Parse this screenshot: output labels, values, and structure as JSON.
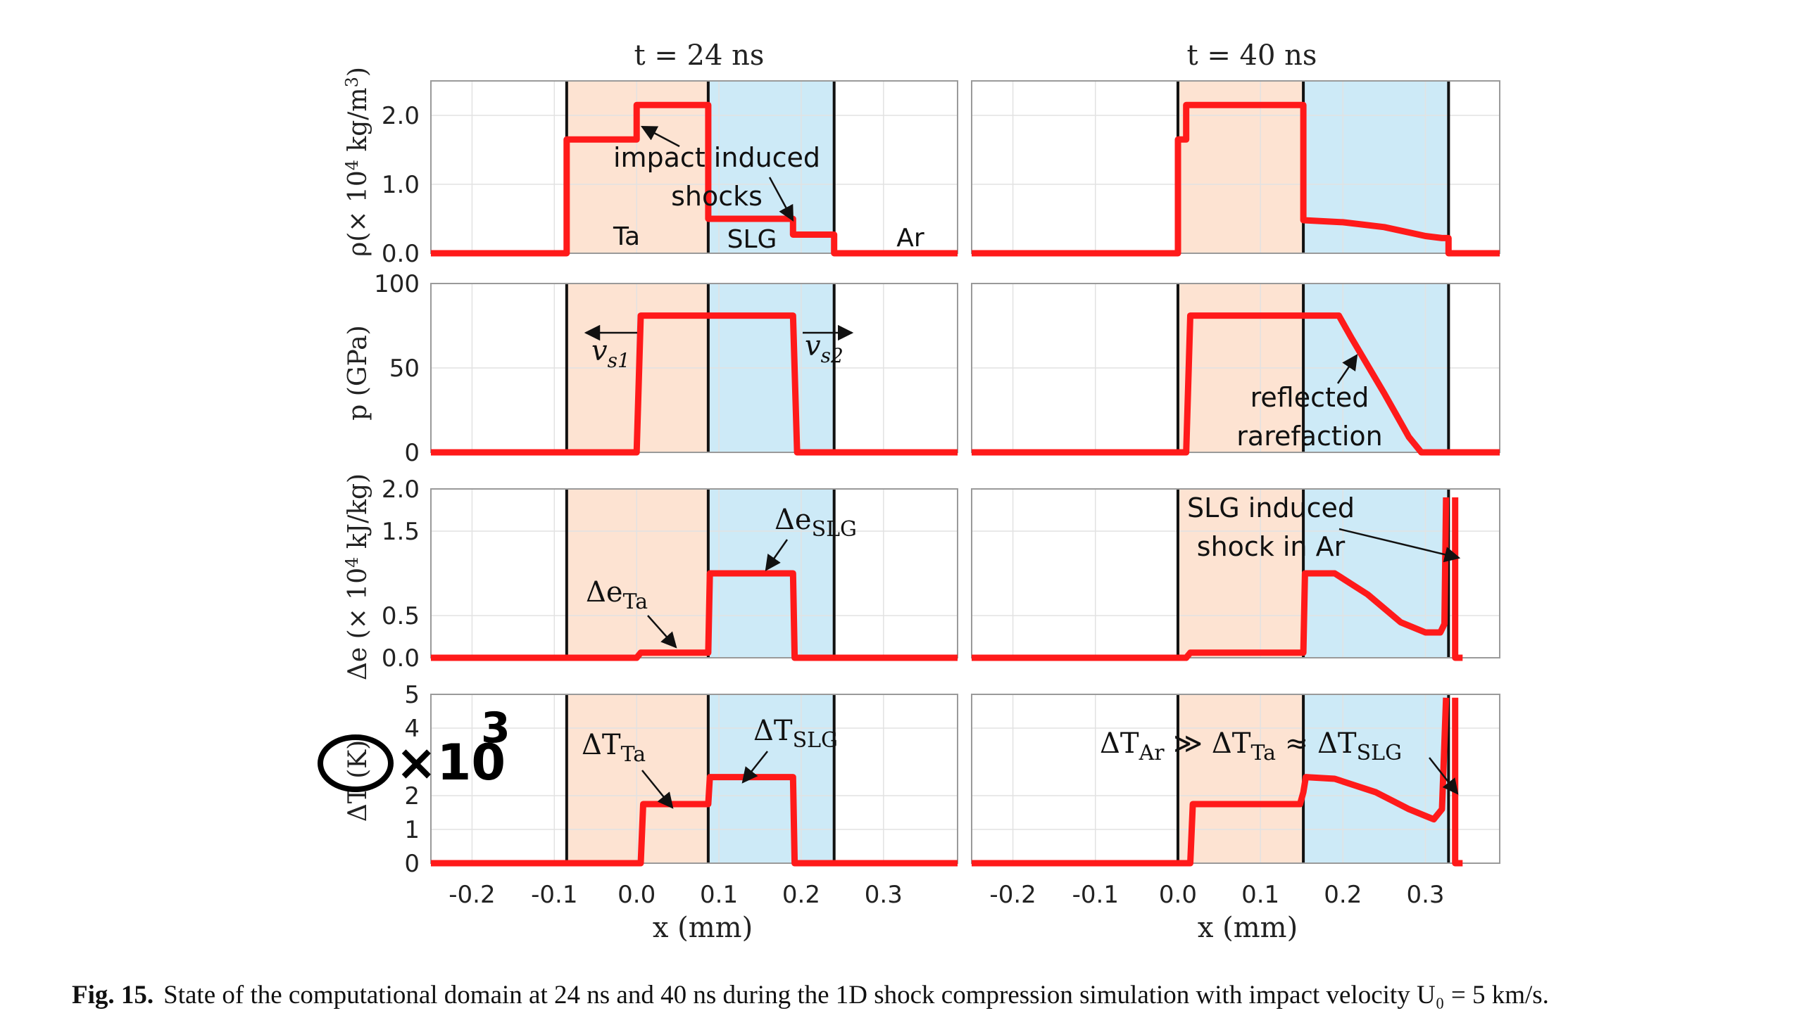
{
  "columns": [
    {
      "title": "t  =  24 ns"
    },
    {
      "title": "t  =  40 ns"
    }
  ],
  "row_labels": [
    {
      "main": "ρ(× 10",
      "sup": "4",
      "tail": " kg/m",
      "sup2": "3",
      "end": ")"
    },
    {
      "main": "p (GPa)"
    },
    {
      "main": "Δe (× 10",
      "sup": "4",
      "tail": " kJ/kg)"
    },
    {
      "main": "ΔT (K)"
    }
  ],
  "x_axis": {
    "label": "x (mm)",
    "ticks": [
      "-0.2",
      "-0.1",
      "0.0",
      "0.1",
      "0.2",
      "0.3"
    ],
    "tick_values": [
      -0.2,
      -0.1,
      0.0,
      0.1,
      0.2,
      0.3
    ],
    "range": [
      -0.25,
      0.39
    ]
  },
  "colors": {
    "curve": "#ff1a1a",
    "ta_region": "#fde3d2",
    "slg_region": "#cdeaf7",
    "boundary": "#111111",
    "grid": "#e2e2e2"
  },
  "chart_data": [
    {
      "type": "line",
      "panel": "density, t = 24 ns",
      "ylabel": "ρ(× 10^4 kg/m^3)",
      "ylim": [
        0,
        2.5
      ],
      "y_ticks": [
        "0.0",
        "1.0",
        "2.0"
      ],
      "y_tick_values": [
        0.0,
        1.0,
        2.0
      ],
      "regions": {
        "ta": [
          -0.085,
          0.087
        ],
        "slg": [
          0.087,
          0.24
        ],
        "boundaries": [
          -0.085,
          0.087,
          0.24
        ]
      },
      "series": [
        {
          "x": [
            -0.25,
            -0.085,
            -0.085,
            0.0,
            0.0,
            0.087,
            0.087,
            0.19,
            0.19,
            0.24,
            0.24,
            0.39
          ],
          "y": [
            0.0,
            0.0,
            1.65,
            1.65,
            2.15,
            2.15,
            0.5,
            0.5,
            0.27,
            0.27,
            0.0,
            0.0
          ]
        }
      ],
      "annotations": [
        "impact induced",
        "shocks",
        "Ta",
        "SLG",
        "Ar"
      ],
      "grid": true
    },
    {
      "type": "line",
      "panel": "density, t = 40 ns",
      "ylim": [
        0,
        2.5
      ],
      "regions": {
        "ta": [
          0.0,
          0.152
        ],
        "slg": [
          0.152,
          0.328
        ],
        "boundaries": [
          0.0,
          0.152,
          0.328
        ]
      },
      "series": [
        {
          "x": [
            -0.25,
            0.0,
            0.0,
            0.01,
            0.01,
            0.152,
            0.152,
            0.2,
            0.25,
            0.3,
            0.32,
            0.328,
            0.328,
            0.39
          ],
          "y": [
            0.0,
            0.0,
            1.65,
            1.65,
            2.15,
            2.15,
            0.48,
            0.45,
            0.38,
            0.25,
            0.22,
            0.22,
            0.0,
            0.0
          ]
        }
      ],
      "grid": true
    },
    {
      "type": "line",
      "panel": "pressure, t = 24 ns",
      "ylabel": "p (GPa)",
      "ylim": [
        0,
        100
      ],
      "y_ticks": [
        "0",
        "50",
        "100"
      ],
      "y_tick_values": [
        0,
        50,
        100
      ],
      "regions": {
        "ta": [
          -0.085,
          0.087
        ],
        "slg": [
          0.087,
          0.24
        ],
        "boundaries": [
          -0.085,
          0.087,
          0.24
        ]
      },
      "series": [
        {
          "x": [
            -0.25,
            0.0,
            0.005,
            0.19,
            0.195,
            0.39
          ],
          "y": [
            0,
            0,
            81,
            81,
            0,
            0
          ]
        }
      ],
      "annotations": [
        "vs1",
        "vs2"
      ],
      "grid": true
    },
    {
      "type": "line",
      "panel": "pressure, t = 40 ns",
      "ylim": [
        0,
        100
      ],
      "regions": {
        "ta": [
          0.0,
          0.152
        ],
        "slg": [
          0.152,
          0.328
        ],
        "boundaries": [
          0.0,
          0.152,
          0.328
        ]
      },
      "series": [
        {
          "x": [
            -0.25,
            0.01,
            0.015,
            0.195,
            0.21,
            0.25,
            0.28,
            0.295,
            0.39
          ],
          "y": [
            0,
            0,
            81,
            81,
            68,
            35,
            9,
            0,
            0
          ]
        }
      ],
      "annotations": [
        "reflected",
        "rarefaction"
      ],
      "grid": true
    },
    {
      "type": "line",
      "panel": "specific energy, t = 24 ns",
      "ylabel": "Δe (× 10^4 kJ/kg)",
      "ylim": [
        0,
        2.0
      ],
      "y_ticks": [
        "0.0",
        "0.5",
        "1.5",
        "2.0"
      ],
      "y_tick_values": [
        0.0,
        0.5,
        1.5,
        2.0
      ],
      "regions": {
        "ta": [
          -0.085,
          0.087
        ],
        "slg": [
          0.087,
          0.24
        ],
        "boundaries": [
          -0.085,
          0.087,
          0.24
        ]
      },
      "series": [
        {
          "x": [
            -0.25,
            0.0,
            0.005,
            0.087,
            0.089,
            0.19,
            0.192,
            0.39
          ],
          "y": [
            0.0,
            0.0,
            0.06,
            0.06,
            1.0,
            1.0,
            0.0,
            0.0
          ]
        }
      ],
      "annotations": [
        "ΔeTa",
        "ΔeSLG"
      ],
      "grid": true
    },
    {
      "type": "line",
      "panel": "specific energy, t = 40 ns",
      "ylim": [
        0,
        2.0
      ],
      "regions": {
        "ta": [
          0.0,
          0.152
        ],
        "slg": [
          0.152,
          0.328
        ],
        "boundaries": [
          0.0,
          0.152,
          0.328
        ]
      },
      "series": [
        {
          "x": [
            -0.25,
            0.01,
            0.015,
            0.152,
            0.154,
            0.19,
            0.23,
            0.27,
            0.3,
            0.318,
            0.323,
            0.325
          ],
          "y": [
            0.0,
            0.0,
            0.06,
            0.06,
            1.0,
            1.0,
            0.75,
            0.42,
            0.3,
            0.3,
            0.4,
            1.9
          ]
        },
        {
          "x": [
            0.336,
            0.336,
            0.345
          ],
          "y": [
            1.9,
            0.0,
            0.0
          ]
        }
      ],
      "annotations": [
        "SLG induced",
        "shock in Ar"
      ],
      "grid": true
    },
    {
      "type": "line",
      "panel": "temperature, t = 24 ns",
      "ylabel": "ΔT (K)",
      "ylim": [
        0,
        5
      ],
      "y_ticks": [
        "0",
        "1",
        "2",
        "4",
        "5"
      ],
      "y_tick_values": [
        0,
        1,
        2,
        4,
        5
      ],
      "regions": {
        "ta": [
          -0.085,
          0.087
        ],
        "slg": [
          0.087,
          0.24
        ],
        "boundaries": [
          -0.085,
          0.087,
          0.24
        ]
      },
      "series": [
        {
          "x": [
            -0.25,
            0.005,
            0.008,
            0.087,
            0.089,
            0.19,
            0.192,
            0.39
          ],
          "y": [
            0,
            0,
            1.75,
            1.75,
            2.55,
            2.55,
            0,
            0
          ]
        }
      ],
      "annotations": [
        "ΔTTa",
        "ΔTSLG"
      ],
      "grid": true
    },
    {
      "type": "line",
      "panel": "temperature, t = 40 ns",
      "ylim": [
        0,
        5
      ],
      "regions": {
        "ta": [
          0.0,
          0.152
        ],
        "slg": [
          0.152,
          0.328
        ],
        "boundaries": [
          0.0,
          0.152,
          0.328
        ]
      },
      "series": [
        {
          "x": [
            -0.25,
            0.015,
            0.018,
            0.148,
            0.152,
            0.155,
            0.19,
            0.24,
            0.28,
            0.31,
            0.32,
            0.325
          ],
          "y": [
            0,
            0,
            1.75,
            1.75,
            2.1,
            2.55,
            2.5,
            2.1,
            1.6,
            1.3,
            1.6,
            4.9
          ]
        },
        {
          "x": [
            0.336,
            0.336,
            0.345
          ],
          "y": [
            4.9,
            0,
            0
          ]
        }
      ],
      "annotations": [
        "ΔTAr ≫ ΔTTa ≈ ΔTSLG"
      ],
      "grid": true
    }
  ],
  "text": {
    "impact_induced": "impact induced",
    "shocks": "shocks",
    "ta": "Ta",
    "slg": "SLG",
    "ar": "Ar",
    "vs1_main": "v",
    "vs1_sub": "s1",
    "vs2_main": "v",
    "vs2_sub": "s2",
    "reflected": "reflected",
    "rarefaction": "rarefaction",
    "de_ta_main": "Δe",
    "de_ta_sub": "Ta",
    "de_slg_main": "Δe",
    "de_slg_sub": "SLG",
    "slg_induced": "SLG induced",
    "shock_in_ar": "shock in Ar",
    "dt_ta_main": "ΔT",
    "dt_ta_sub": "Ta",
    "dt_slg_main": "ΔT",
    "dt_slg_sub": "SLG",
    "relation_ar": "ΔT",
    "relation_ar_sub": "Ar",
    "relation_gg": " ≫ ",
    "relation_ta": "ΔT",
    "relation_ta_sub": "Ta",
    "relation_approx": " ≈ ",
    "relation_slg": "ΔT",
    "relation_slg_sub": "SLG",
    "handwritten_factor": "×10",
    "handwritten_exp": "3"
  },
  "caption": {
    "label": "Fig. 15.",
    "text": "State of the computational domain at 24 ns and 40 ns during the 1D shock compression simulation with impact velocity U₀ = 5 km/s."
  }
}
